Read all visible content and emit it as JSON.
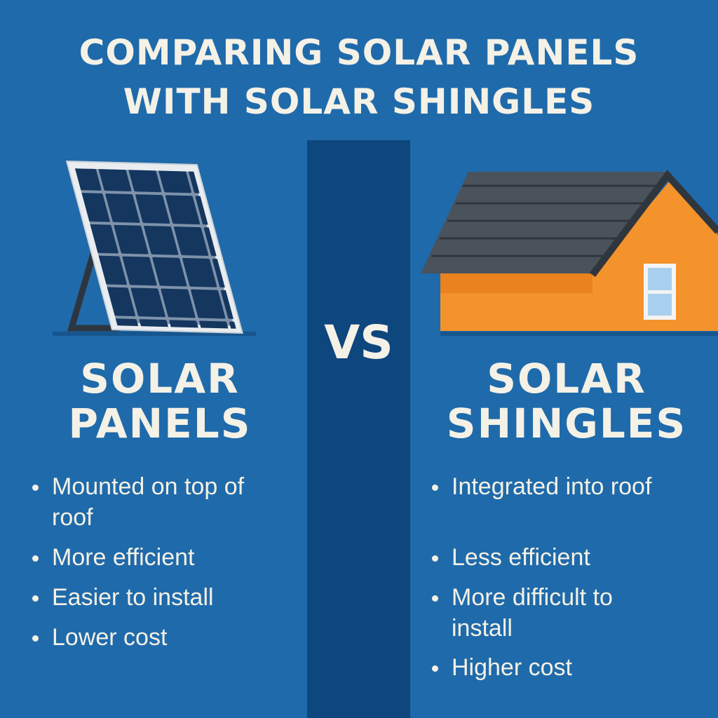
{
  "title": [
    "COMPARING SOLAR PANELS",
    "WITH SOLAR SHINGLES"
  ],
  "left": {
    "heading": [
      "SOLAR",
      "PANELS"
    ],
    "bullets": [
      "Mounted on top of roof",
      "More efficient",
      "Easier to install",
      "Lower cost"
    ]
  },
  "vs": "VS",
  "right": {
    "heading": [
      "SOLAR",
      "SHINGLES"
    ],
    "bullets": [
      "Integrated into roof",
      "Less efficient",
      "More difficult to install",
      "Higher cost"
    ]
  }
}
